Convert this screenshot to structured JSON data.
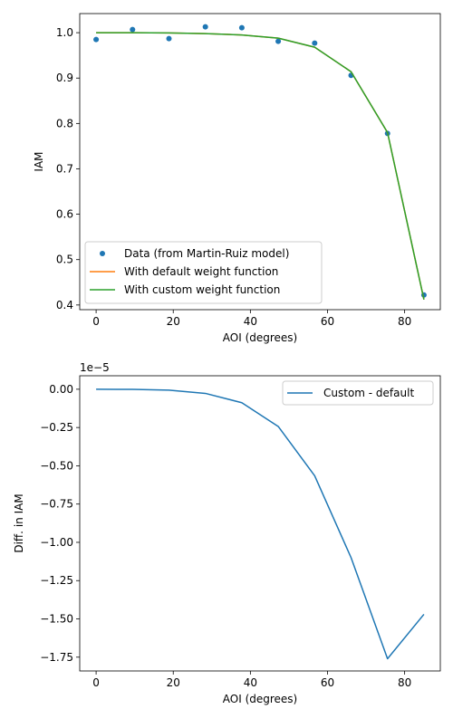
{
  "chart_data": [
    {
      "type": "line",
      "xlabel": "AOI (degrees)",
      "ylabel": "IAM",
      "xlim": [
        -4.25,
        89.25
      ],
      "ylim": [
        0.3897,
        1.0421
      ],
      "xticks": [
        0,
        20,
        40,
        60,
        80
      ],
      "yticks": [
        0.4,
        0.5,
        0.6,
        0.7,
        0.8,
        0.9,
        1.0
      ],
      "ytick_labels": [
        "0.4",
        "0.5",
        "0.6",
        "0.7",
        "0.8",
        "0.9",
        "1.0"
      ],
      "legend": "lower-left",
      "grid": false,
      "series": [
        {
          "name": "Data (from Martin-Ruiz model)",
          "style": "points",
          "color": "#1f77b4",
          "x": [
            0,
            9.44,
            18.89,
            28.33,
            37.78,
            47.22,
            56.67,
            66.11,
            75.56,
            85
          ],
          "y": [
            0.985,
            1.007,
            0.987,
            1.013,
            1.011,
            0.981,
            0.977,
            0.906,
            0.778,
            0.422
          ]
        },
        {
          "name": "With default weight function",
          "style": "line",
          "color": "#ff7f0e",
          "x": [
            0,
            9.44,
            18.89,
            28.33,
            37.78,
            47.22,
            56.67,
            66.11,
            75.56,
            85
          ],
          "y": [
            1.0,
            1.0,
            0.9995,
            0.998,
            0.995,
            0.988,
            0.968,
            0.914,
            0.78,
            0.412
          ]
        },
        {
          "name": "With custom weight function",
          "style": "line",
          "color": "#2ca02c",
          "x": [
            0,
            9.44,
            18.89,
            28.33,
            37.78,
            47.22,
            56.67,
            66.11,
            75.56,
            85
          ],
          "y": [
            1.0,
            1.0,
            0.9995,
            0.998,
            0.995,
            0.988,
            0.968,
            0.914,
            0.78,
            0.412
          ]
        }
      ]
    },
    {
      "type": "line",
      "xlabel": "AOI (degrees)",
      "ylabel": "Diff. in IAM",
      "offset_label": "1e−5",
      "xlim": [
        -4.25,
        89.25
      ],
      "ylim": [
        -1.84,
        0.088
      ],
      "xticks": [
        0,
        20,
        40,
        60,
        80
      ],
      "yticks": [
        0.0,
        -0.25,
        -0.5,
        -0.75,
        -1.0,
        -1.25,
        -1.5,
        -1.75
      ],
      "ytick_labels": [
        "0.00",
        "−0.25",
        "−0.50",
        "−0.75",
        "−1.00",
        "−1.25",
        "−1.50",
        "−1.75"
      ],
      "legend": "upper-right",
      "grid": false,
      "series": [
        {
          "name": "Custom - default",
          "style": "line",
          "color": "#1f77b4",
          "x": [
            0,
            9.44,
            18.89,
            28.33,
            37.78,
            47.22,
            56.67,
            66.11,
            75.56,
            85
          ],
          "y": [
            0.0,
            -0.001,
            -0.006,
            -0.027,
            -0.088,
            -0.243,
            -0.565,
            -1.1,
            -1.76,
            -1.47
          ]
        }
      ]
    }
  ]
}
